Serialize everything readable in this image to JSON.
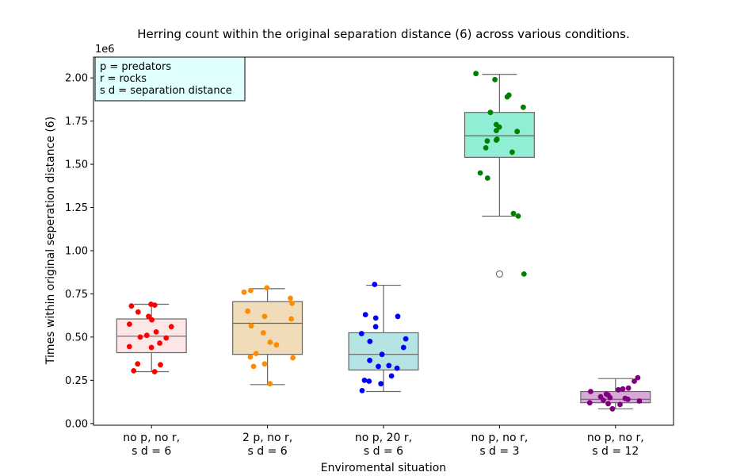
{
  "chart_data": {
    "type": "box",
    "title": "Herring count within the original separation distance (6) across various conditions.",
    "xlabel": "Enviromental situation",
    "ylabel": "Times within original seperation distance (6)",
    "y_offset_label": "1e6",
    "ylim": [
      -0.01,
      2.12
    ],
    "y_ticks": [
      0.0,
      0.25,
      0.5,
      0.75,
      1.0,
      1.25,
      1.5,
      1.75,
      2.0
    ],
    "y_tick_labels": [
      "0.00",
      "0.25",
      "0.50",
      "0.75",
      "1.00",
      "1.25",
      "1.50",
      "1.75",
      "2.00"
    ],
    "legend_box": {
      "placement": "top-left",
      "lines": [
        "p = predators",
        "r = rocks",
        "s d = separation distance"
      ],
      "background": "#e0ffff"
    },
    "categories": [
      {
        "label_line1": "no p, no r,",
        "label_line2": "s d = 6",
        "box_color": "#fde6e6",
        "point_color": "#ff0000",
        "whisker_low": 0.3,
        "q1": 0.41,
        "median": 0.505,
        "q3": 0.605,
        "whisker_high": 0.69,
        "outliers": [],
        "points": [
          0.69,
          0.685,
          0.68,
          0.645,
          0.62,
          0.6,
          0.575,
          0.56,
          0.53,
          0.51,
          0.5,
          0.495,
          0.465,
          0.445,
          0.44,
          0.345,
          0.34,
          0.305,
          0.3
        ]
      },
      {
        "label_line1": "2 p, no r,",
        "label_line2": "s d = 6",
        "box_color": "#f0dcb8",
        "point_color": "#ff8c00",
        "whisker_low": 0.225,
        "q1": 0.4,
        "median": 0.58,
        "q3": 0.705,
        "whisker_high": 0.78,
        "outliers": [],
        "points": [
          0.785,
          0.77,
          0.76,
          0.725,
          0.695,
          0.65,
          0.62,
          0.605,
          0.565,
          0.525,
          0.47,
          0.455,
          0.405,
          0.385,
          0.38,
          0.345,
          0.33,
          0.23
        ]
      },
      {
        "label_line1": "no p, 20 r,",
        "label_line2": "s d = 6",
        "box_color": "#b4e4e4",
        "point_color": "#0000ff",
        "whisker_low": 0.185,
        "q1": 0.31,
        "median": 0.4,
        "q3": 0.525,
        "whisker_high": 0.8,
        "outliers": [],
        "points": [
          0.805,
          0.63,
          0.62,
          0.61,
          0.56,
          0.52,
          0.49,
          0.475,
          0.44,
          0.4,
          0.365,
          0.335,
          0.33,
          0.32,
          0.275,
          0.25,
          0.245,
          0.23,
          0.19
        ]
      },
      {
        "label_line1": "no p, no r,",
        "label_line2": "s d = 3",
        "box_color": "#90eed4",
        "point_color": "#008000",
        "whisker_low": 1.2,
        "q1": 1.54,
        "median": 1.665,
        "q3": 1.8,
        "whisker_high": 2.02,
        "outliers": [
          0.865
        ],
        "points": [
          2.025,
          1.99,
          1.9,
          1.89,
          1.83,
          1.8,
          1.73,
          1.715,
          1.695,
          1.69,
          1.645,
          1.64,
          1.635,
          1.595,
          1.57,
          1.45,
          1.42,
          1.215,
          1.2,
          0.865
        ]
      },
      {
        "label_line1": "no p, no r,",
        "label_line2": "s d = 12",
        "box_color": "#d8a8d8",
        "point_color": "#800080",
        "whisker_low": 0.085,
        "q1": 0.12,
        "median": 0.14,
        "q3": 0.185,
        "whisker_high": 0.26,
        "outliers": [],
        "points": [
          0.265,
          0.245,
          0.205,
          0.2,
          0.195,
          0.185,
          0.17,
          0.165,
          0.155,
          0.15,
          0.145,
          0.14,
          0.135,
          0.13,
          0.12,
          0.115,
          0.11,
          0.085
        ]
      }
    ]
  }
}
